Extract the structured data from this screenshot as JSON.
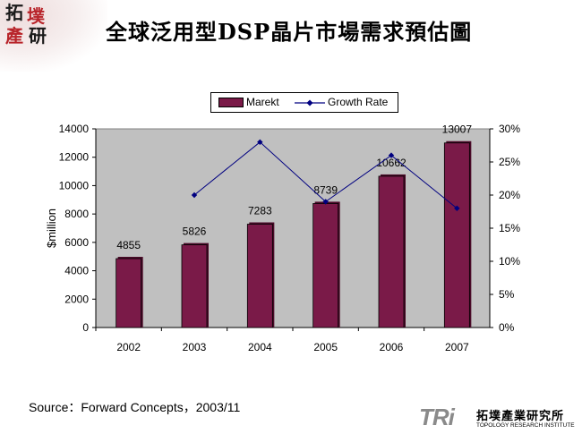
{
  "slide": {
    "title": "全球泛用型DSP晶片市場需求預估圖",
    "source": "Source：Forward Concepts，2003/11"
  },
  "logo_top": {
    "chars": [
      "拓",
      "墣",
      "產",
      "研"
    ]
  },
  "footer_logo": {
    "mark": "TRi",
    "org_cn": "拓墣產業研究所",
    "org_en": "TOPOLOGY RESEARCH INSTITUTE"
  },
  "colors": {
    "bar": "#7a1a48",
    "bar_dark": "#4a0a28",
    "line": "#000080",
    "plot_bg": "#c0c0c0",
    "logo_red": "#b8242a"
  },
  "chart_data": {
    "type": "bar",
    "categories": [
      "2002",
      "2003",
      "2004",
      "2005",
      "2006",
      "2007"
    ],
    "series": [
      {
        "name": "Marekt",
        "type": "bar",
        "axis": "left",
        "values": [
          4855,
          5826,
          7283,
          8739,
          10662,
          13007
        ],
        "labels": [
          "4855",
          "5826",
          "7283",
          "8739",
          "10662",
          "13007"
        ]
      },
      {
        "name": "Growth Rate",
        "type": "line",
        "axis": "right",
        "values": [
          null,
          0.2,
          0.28,
          0.19,
          0.26,
          0.18
        ]
      }
    ],
    "ylabel": "$million",
    "ylim": [
      0,
      14000
    ],
    "yticks": [
      0,
      2000,
      4000,
      6000,
      8000,
      10000,
      12000,
      14000
    ],
    "y2lim": [
      0,
      0.3
    ],
    "y2ticks": [
      "0%",
      "5%",
      "10%",
      "15%",
      "20%",
      "25%",
      "30%"
    ],
    "legend": {
      "position": "top",
      "entries": [
        "Marekt",
        "Growth Rate"
      ]
    }
  }
}
